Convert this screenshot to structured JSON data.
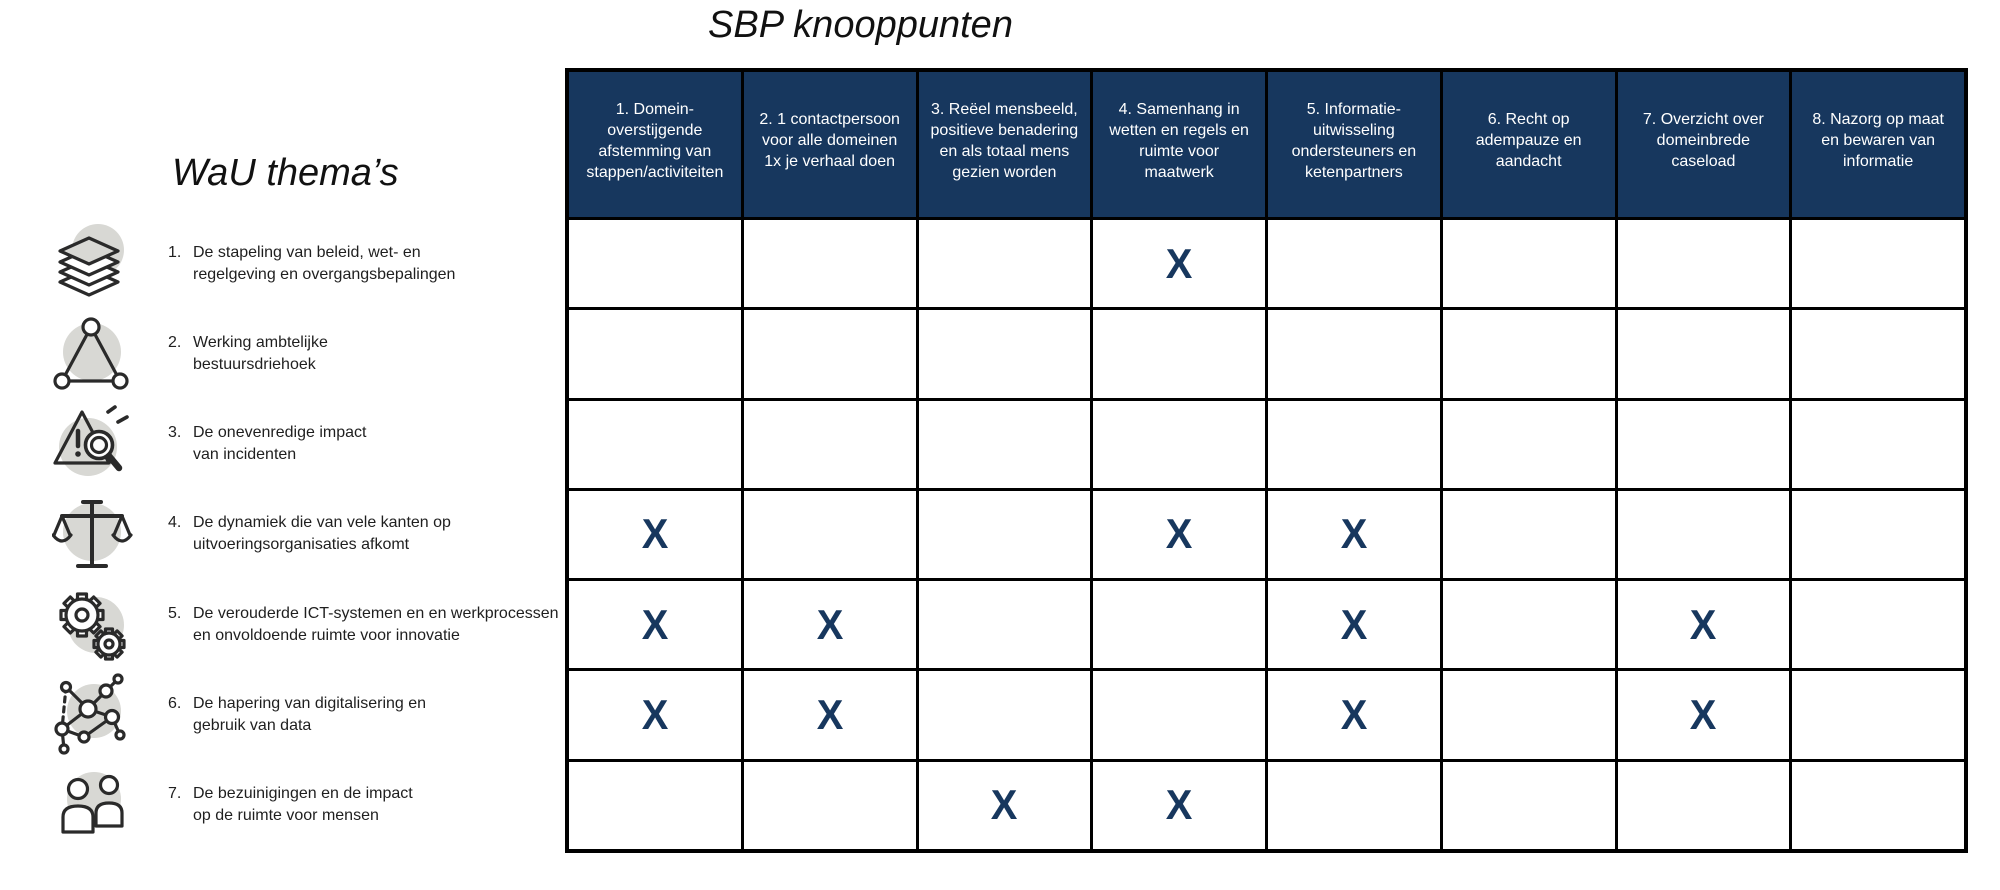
{
  "titles": {
    "columns_title": "SBP knooppunten",
    "rows_title": "WaU thema’s"
  },
  "colors": {
    "header_bg": "#17375E",
    "header_text": "#FFFFFF",
    "mark": "#17375E",
    "grid_line": "#000000",
    "icon_circle": "#D8D8D4",
    "icon_stroke": "#2A2A2A"
  },
  "mark_symbol": "X",
  "columns": [
    {
      "label": "1. Domein-overstijgende afstemming van stappen/activiteiten",
      "lines": [
        "1. Domein-",
        "overstijgende",
        "afstemming van",
        "stappen/activiteiten"
      ]
    },
    {
      "label": "2. 1 contactpersoon voor alle domeinen 1x je verhaal doen",
      "lines": [
        "2. 1 contactpersoon",
        "voor alle domeinen",
        "1x je verhaal doen"
      ]
    },
    {
      "label": "3. Reëel mensbeeld, positieve benadering en als totaal mens gezien worden",
      "lines": [
        "3. Reëel mensbeeld,",
        "positieve benadering",
        "en als totaal mens",
        "gezien worden"
      ]
    },
    {
      "label": "4. Samenhang in wetten en regels en ruimte voor maatwerk",
      "lines": [
        "4. Samenhang in",
        "wetten en regels en",
        "ruimte voor",
        "maatwerk"
      ]
    },
    {
      "label": "5. Informatie-uitwisseling ondersteuners en ketenpartners",
      "lines": [
        "5. Informatie-",
        "uitwisseling",
        "ondersteuners en",
        "ketenpartners"
      ]
    },
    {
      "label": "6. Recht op adempauze en aandacht",
      "lines": [
        "6. Recht op",
        "adempauze en",
        "aandacht"
      ]
    },
    {
      "label": "7. Overzicht over domeinbrede caseload",
      "lines": [
        "7. Overzicht over",
        "domeinbrede",
        "caseload"
      ]
    },
    {
      "label": "8. Nazorg op maat en bewaren van informatie",
      "lines": [
        "8. Nazorg op maat",
        "en bewaren van",
        "informatie"
      ]
    }
  ],
  "rows": [
    {
      "num": "1.",
      "icon": "layers-stack",
      "label": "De stapeling van beleid, wet- en regelgeving en overgangsbepalingen",
      "lines": [
        "De stapeling van beleid, wet- en",
        "regelgeving en overgangsbepalingen"
      ]
    },
    {
      "num": "2.",
      "icon": "triangle-network",
      "label": "Werking ambtelijke bestuursdriehoek",
      "lines": [
        "Werking ambtelijke",
        "bestuursdriehoek"
      ]
    },
    {
      "num": "3.",
      "icon": "incident-magnifier",
      "label": "De onevenredige impact van incidenten",
      "lines": [
        "De onevenredige impact",
        "van incidenten"
      ]
    },
    {
      "num": "4.",
      "icon": "scales",
      "label": "De dynamiek die van vele kanten op uitvoeringsorganisaties afkomt",
      "lines": [
        "De dynamiek die van vele kanten op",
        "uitvoeringsorganisaties afkomt"
      ]
    },
    {
      "num": "5.",
      "icon": "gears",
      "label": "De verouderde ICT-systemen en en werkprocessen en onvoldoende ruimte voor innovatie",
      "lines": [
        "De verouderde ICT-systemen en en werkprocessen",
        "en onvoldoende ruimte voor innovatie"
      ]
    },
    {
      "num": "6.",
      "icon": "data-network",
      "label": "De hapering van digitalisering en gebruik van data",
      "lines": [
        "De hapering van digitalisering en",
        "gebruik van data"
      ]
    },
    {
      "num": "7.",
      "icon": "people",
      "label": "De bezuinigingen en de impact op de ruimte voor mensen",
      "lines": [
        "De bezuinigingen en de impact",
        "op de ruimte voor mensen"
      ]
    }
  ],
  "marks": [
    {
      "row": 1,
      "cols": [
        4
      ]
    },
    {
      "row": 2,
      "cols": []
    },
    {
      "row": 3,
      "cols": []
    },
    {
      "row": 4,
      "cols": [
        1,
        4,
        5
      ]
    },
    {
      "row": 5,
      "cols": [
        1,
        2,
        5,
        7
      ]
    },
    {
      "row": 6,
      "cols": [
        1,
        2,
        5,
        7
      ]
    },
    {
      "row": 7,
      "cols": [
        3,
        4
      ]
    }
  ]
}
